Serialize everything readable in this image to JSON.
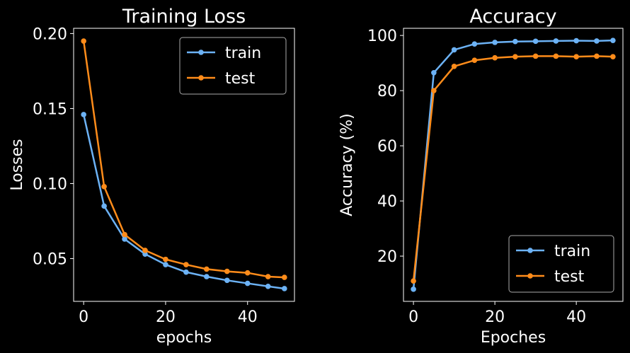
{
  "colors": {
    "background": "#000000",
    "train": "#6cb2f5",
    "test": "#ff8c1a",
    "axes": "#ffffff",
    "text": "#ffffff"
  },
  "chart_data": [
    {
      "type": "line",
      "title": "Training Loss",
      "xlabel": "epochs",
      "ylabel": "Losses",
      "xlim": [
        -2.45,
        51.45
      ],
      "ylim": [
        0.0215,
        0.2035
      ],
      "xticks": [
        "0",
        "20",
        "40"
      ],
      "xtick_values": [
        0,
        20,
        40
      ],
      "yticks": [
        "0.05",
        "0.10",
        "0.15",
        "0.20"
      ],
      "ytick_values": [
        0.05,
        0.1,
        0.15,
        0.2
      ],
      "grid": false,
      "legend_position": "top-right",
      "x": [
        0,
        5,
        10,
        15,
        20,
        25,
        30,
        35,
        40,
        45,
        49
      ],
      "series": [
        {
          "name": "train",
          "color": "#6cb2f5",
          "values": [
            0.146,
            0.085,
            0.063,
            0.053,
            0.046,
            0.041,
            0.038,
            0.0355,
            0.0335,
            0.0315,
            0.03
          ]
        },
        {
          "name": "test",
          "color": "#ff8c1a",
          "values": [
            0.195,
            0.098,
            0.066,
            0.0555,
            0.0495,
            0.046,
            0.043,
            0.0415,
            0.0405,
            0.038,
            0.0375
          ]
        }
      ]
    },
    {
      "type": "line",
      "title": "Accuracy",
      "xlabel": "Epoches",
      "ylabel": "Accuracy (%)",
      "xlim": [
        -2.45,
        51.45
      ],
      "ylim": [
        3.6,
        102.6
      ],
      "xticks": [
        "0",
        "20",
        "40"
      ],
      "xtick_values": [
        0,
        20,
        40
      ],
      "yticks": [
        "20",
        "40",
        "60",
        "80",
        "100"
      ],
      "ytick_values": [
        20,
        40,
        60,
        80,
        100
      ],
      "grid": false,
      "legend_position": "bottom-right",
      "x": [
        0,
        5,
        10,
        15,
        20,
        25,
        30,
        35,
        40,
        45,
        49
      ],
      "series": [
        {
          "name": "train",
          "color": "#6cb2f5",
          "values": [
            8.0,
            86.5,
            94.8,
            96.9,
            97.5,
            97.8,
            97.9,
            98.0,
            98.1,
            98.0,
            98.2
          ]
        },
        {
          "name": "test",
          "color": "#ff8c1a",
          "values": [
            11.0,
            80.0,
            88.8,
            91.0,
            91.9,
            92.3,
            92.5,
            92.5,
            92.3,
            92.5,
            92.3
          ]
        }
      ]
    }
  ]
}
